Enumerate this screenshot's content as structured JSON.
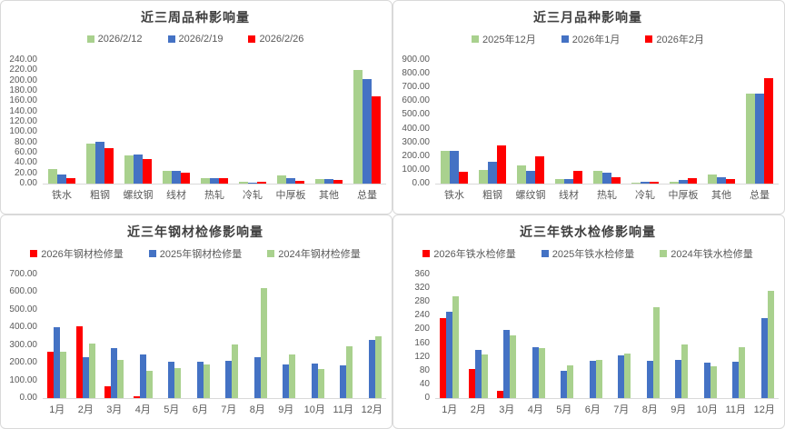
{
  "colors": {
    "green": "#A9D18E",
    "blue": "#4472C4",
    "red": "#FF0000",
    "axis_line": "#d9d9d9",
    "text": "#595959",
    "title": "#3f3f3f"
  },
  "chart_data": [
    {
      "id": "weekly-variety",
      "type": "bar",
      "title": "近三周品种影响量",
      "legend_position": "top",
      "grid": false,
      "y_axis": {
        "min": 0,
        "max": 240,
        "step": 20,
        "decimals": 2
      },
      "categories": [
        "铁水",
        "粗钢",
        "螺纹钢",
        "线材",
        "热轧",
        "冷轧",
        "中厚板",
        "其他",
        "总量"
      ],
      "series": [
        {
          "name": "2026/2/12",
          "color": "#A9D18E",
          "values": [
            29,
            78,
            54,
            25,
            11,
            3,
            15,
            9,
            221
          ]
        },
        {
          "name": "2026/2/19",
          "color": "#4472C4",
          "values": [
            18,
            81,
            56,
            24,
            10,
            2,
            10,
            8,
            203
          ]
        },
        {
          "name": "2026/2/26",
          "color": "#FF0000",
          "values": [
            10,
            68,
            48,
            22,
            10,
            3,
            6,
            7,
            169
          ]
        }
      ]
    },
    {
      "id": "monthly-variety",
      "type": "bar",
      "title": "近三月品种影响量",
      "legend_position": "top",
      "grid": false,
      "y_axis": {
        "min": 0,
        "max": 900,
        "step": 100,
        "decimals": 2
      },
      "categories": [
        "铁水",
        "粗钢",
        "螺纹钢",
        "线材",
        "热轧",
        "冷轧",
        "中厚板",
        "其他",
        "总量"
      ],
      "series": [
        {
          "name": "2025年12月",
          "color": "#A9D18E",
          "values": [
            237,
            97,
            130,
            30,
            90,
            8,
            15,
            64,
            654
          ]
        },
        {
          "name": "2026年1月",
          "color": "#4472C4",
          "values": [
            237,
            160,
            90,
            32,
            78,
            10,
            25,
            45,
            656
          ]
        },
        {
          "name": "2026年2月",
          "color": "#FF0000",
          "values": [
            87,
            281,
            198,
            92,
            48,
            14,
            40,
            35,
            770
          ]
        }
      ]
    },
    {
      "id": "steel-maintenance-3yr",
      "type": "bar",
      "title": "近三年钢材检修影响量",
      "legend_position": "top",
      "grid": false,
      "y_axis": {
        "min": 0,
        "max": 700,
        "step": 100,
        "decimals": 2
      },
      "categories": [
        "1月",
        "2月",
        "3月",
        "4月",
        "5月",
        "6月",
        "7月",
        "8月",
        "9月",
        "10月",
        "11月",
        "12月"
      ],
      "series": [
        {
          "name": "2026年钢材检修量",
          "color": "#FF0000",
          "values": [
            262,
            408,
            69,
            9,
            0,
            0,
            0,
            0,
            0,
            0,
            0,
            0
          ]
        },
        {
          "name": "2025年钢材检修量",
          "color": "#4472C4",
          "values": [
            403,
            230,
            285,
            247,
            205,
            207,
            210,
            230,
            193,
            196,
            185,
            327
          ]
        },
        {
          "name": "2024年钢材检修量",
          "color": "#A9D18E",
          "values": [
            261,
            309,
            218,
            155,
            170,
            188,
            302,
            621,
            248,
            167,
            292,
            352
          ]
        }
      ]
    },
    {
      "id": "ironwater-maintenance-3yr",
      "type": "bar",
      "title": "近三年铁水检修影响量",
      "legend_position": "top",
      "grid": false,
      "y_axis": {
        "min": 0,
        "max": 360,
        "step": 40,
        "decimals": 0
      },
      "categories": [
        "1月",
        "2月",
        "3月",
        "4月",
        "5月",
        "6月",
        "7月",
        "8月",
        "9月",
        "10月",
        "11月",
        "12月"
      ],
      "series": [
        {
          "name": "2026年铁水检修量",
          "color": "#FF0000",
          "values": [
            234,
            85,
            21,
            0,
            0,
            0,
            0,
            0,
            0,
            0,
            0,
            0
          ]
        },
        {
          "name": "2025年铁水检修量",
          "color": "#4472C4",
          "values": [
            251,
            140,
            198,
            149,
            80,
            108,
            125,
            108,
            112,
            104,
            105,
            234
          ]
        },
        {
          "name": "2024年铁水检修量",
          "color": "#A9D18E",
          "values": [
            296,
            126,
            183,
            146,
            95,
            110,
            131,
            264,
            157,
            93,
            149,
            313
          ]
        }
      ]
    }
  ]
}
